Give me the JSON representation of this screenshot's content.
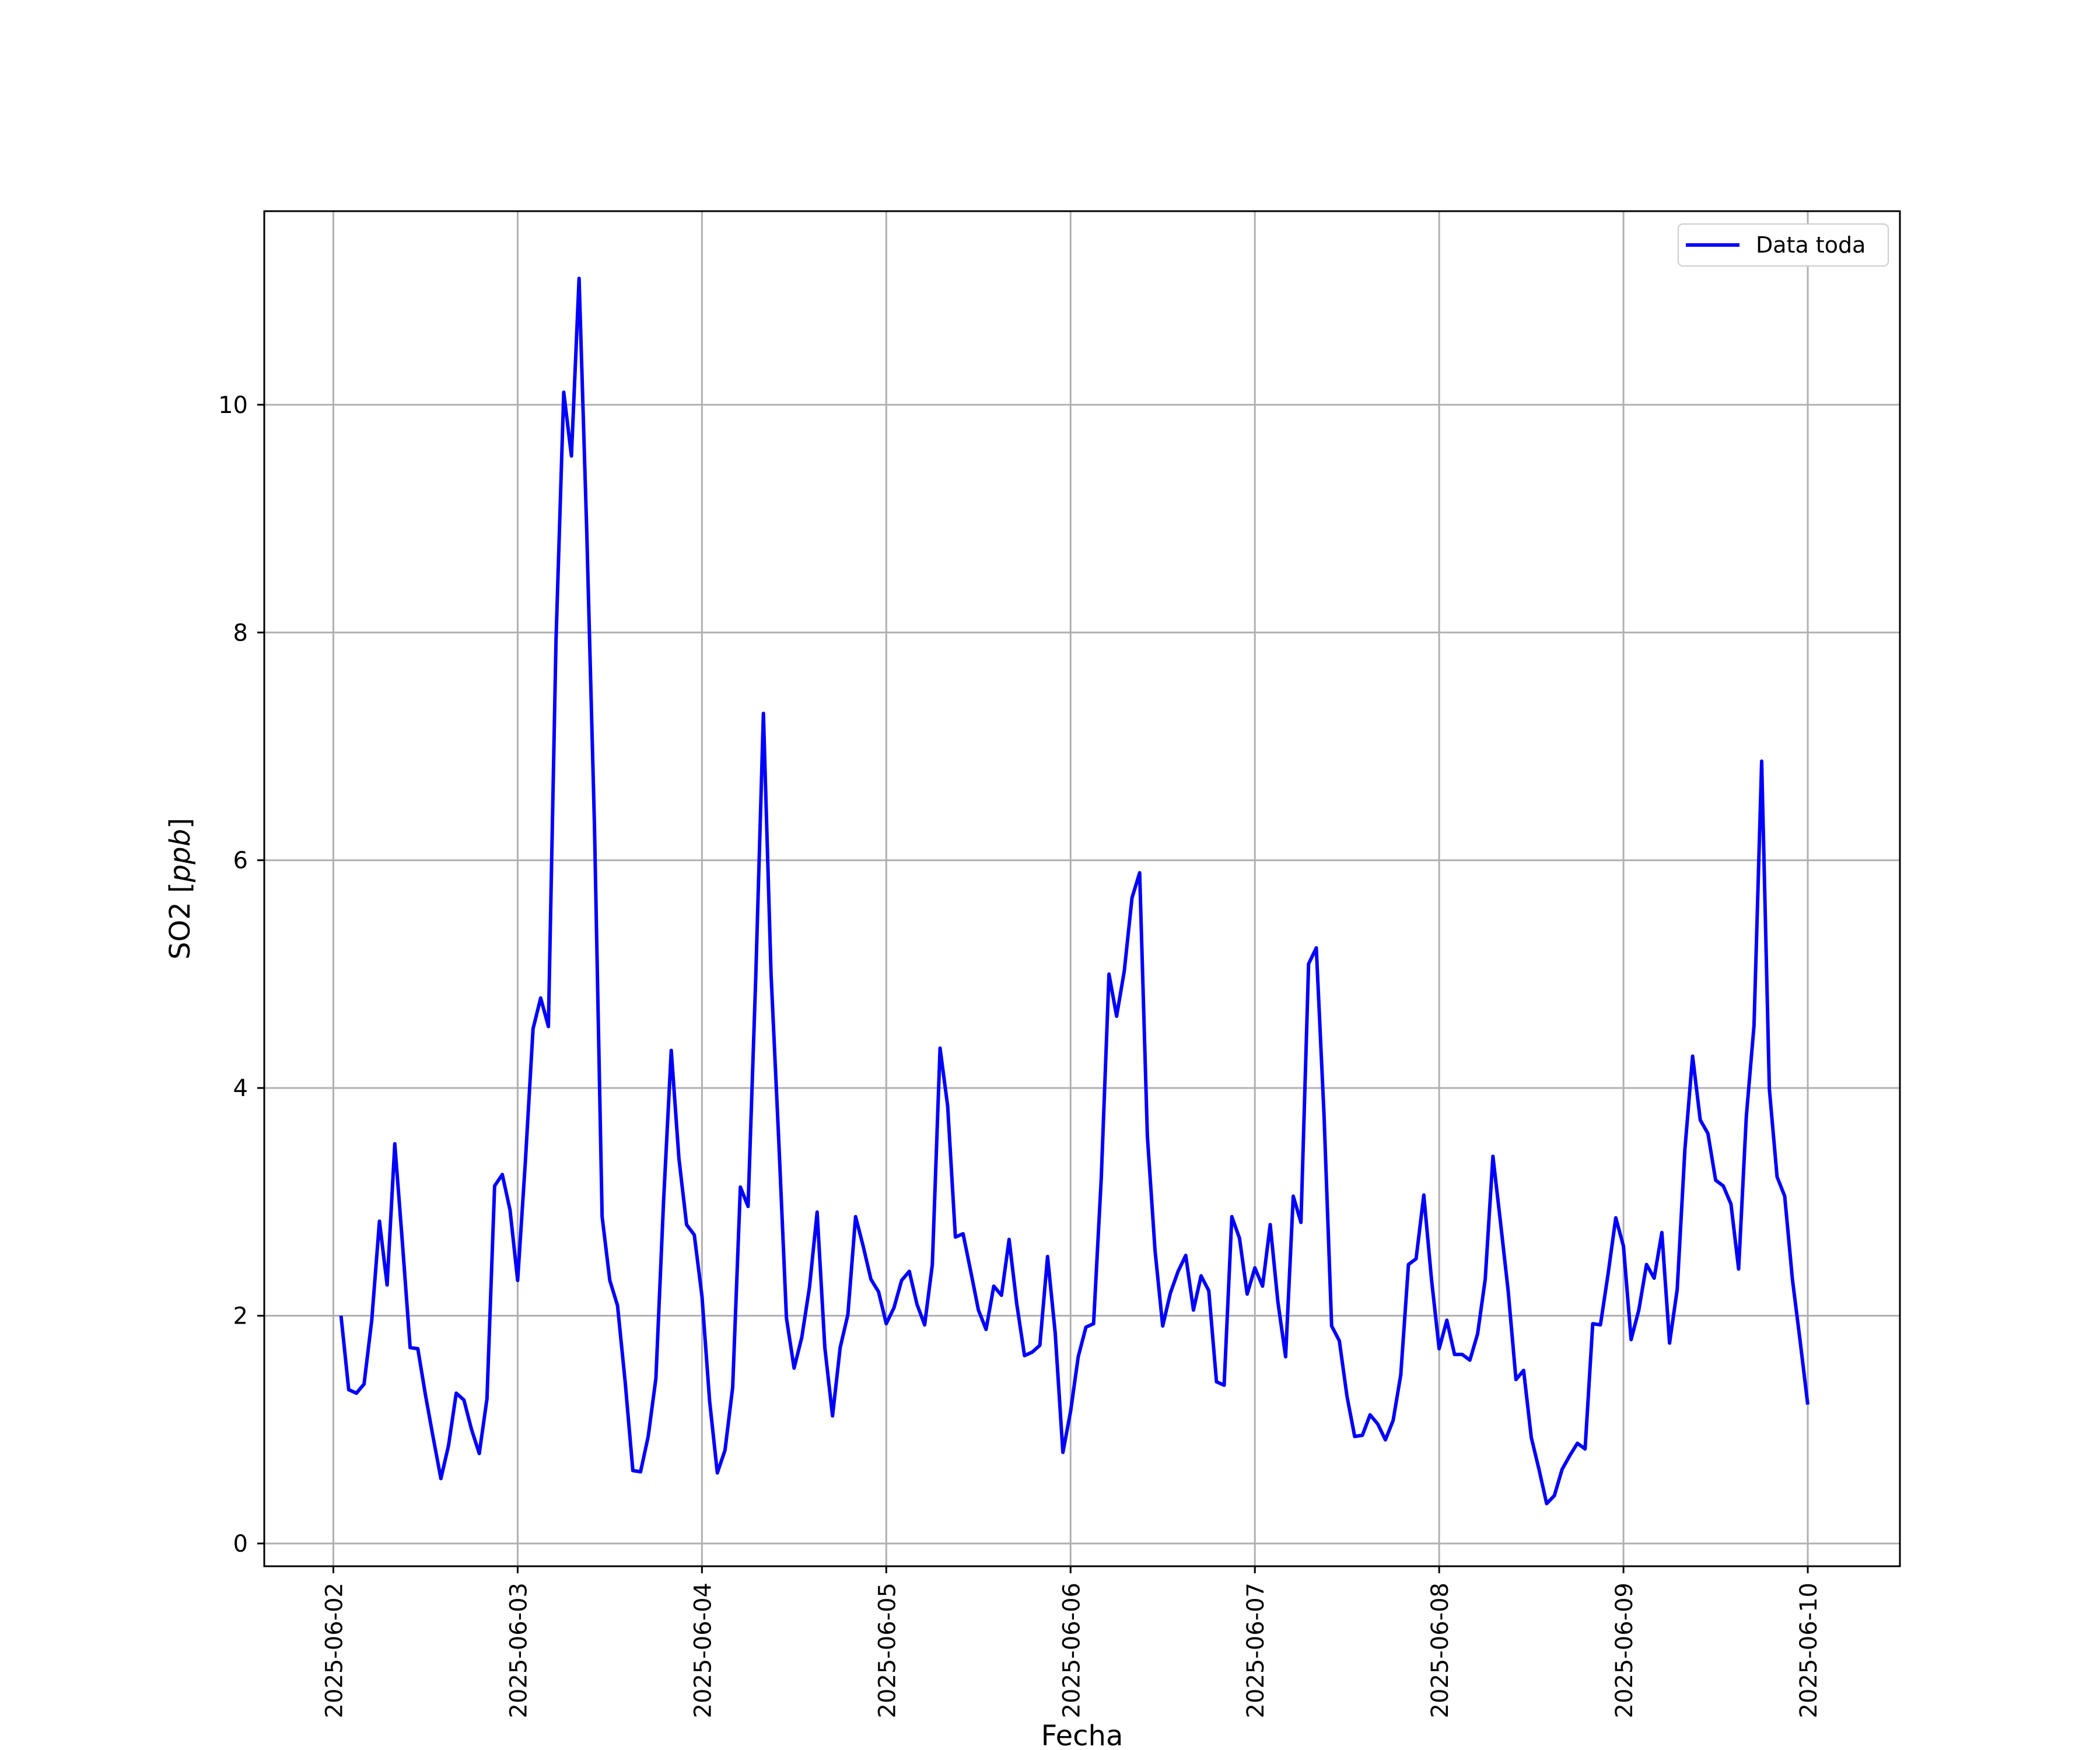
{
  "chart_data": {
    "type": "line",
    "title": "",
    "xlabel": "Fecha",
    "ylabel_main": "SO2 [",
    "ylabel_unit": "ppb",
    "ylabel_end": "]",
    "xlim": [
      "2025-06-01T15:00",
      "2025-06-10T12:00"
    ],
    "ylim": [
      -0.2,
      11.7
    ],
    "yticks": [
      0,
      2,
      4,
      6,
      8,
      10
    ],
    "xticks": [
      "2025-06-02",
      "2025-06-03",
      "2025-06-04",
      "2025-06-05",
      "2025-06-06",
      "2025-06-07",
      "2025-06-08",
      "2025-06-09",
      "2025-06-10"
    ],
    "grid": true,
    "legend_position": "top-right",
    "series": [
      {
        "name": "Data toda",
        "color": "#0000ff",
        "x_start": "2025-06-02T01:00",
        "x_step_hours": 1,
        "values": [
          2.0,
          1.35,
          1.32,
          1.4,
          1.96,
          2.83,
          2.27,
          3.51,
          2.63,
          1.72,
          1.71,
          1.3,
          0.93,
          0.57,
          0.86,
          1.32,
          1.26,
          1.0,
          0.79,
          1.27,
          3.14,
          3.24,
          2.93,
          2.31,
          3.35,
          4.52,
          4.79,
          4.54,
          7.94,
          10.11,
          9.55,
          11.11,
          8.88,
          6.3,
          2.87,
          2.31,
          2.09,
          1.42,
          0.64,
          0.63,
          0.94,
          1.45,
          3.0,
          4.33,
          3.38,
          2.8,
          2.71,
          2.17,
          1.25,
          0.62,
          0.82,
          1.37,
          3.13,
          2.96,
          4.96,
          7.29,
          5.0,
          3.54,
          1.98,
          1.54,
          1.81,
          2.25,
          2.91,
          1.72,
          1.12,
          1.72,
          2.01,
          2.87,
          2.61,
          2.32,
          2.21,
          1.93,
          2.07,
          2.31,
          2.39,
          2.1,
          1.92,
          2.45,
          4.35,
          3.84,
          2.69,
          2.72,
          2.39,
          2.05,
          1.88,
          2.26,
          2.18,
          2.67,
          2.1,
          1.65,
          1.68,
          1.74,
          2.52,
          1.85,
          0.8,
          1.16,
          1.64,
          1.9,
          1.93,
          3.21,
          5.0,
          4.63,
          5.03,
          5.67,
          5.89,
          3.58,
          2.57,
          1.91,
          2.2,
          2.39,
          2.53,
          2.05,
          2.35,
          2.22,
          1.42,
          1.39,
          2.87,
          2.68,
          2.19,
          2.42,
          2.26,
          2.8,
          2.12,
          1.64,
          3.05,
          2.82,
          5.09,
          5.23,
          3.77,
          1.91,
          1.78,
          1.29,
          0.94,
          0.95,
          1.13,
          1.05,
          0.91,
          1.08,
          1.48,
          2.45,
          2.5,
          3.06,
          2.32,
          1.71,
          1.96,
          1.66,
          1.66,
          1.61,
          1.84,
          2.32,
          3.4,
          2.81,
          2.21,
          1.44,
          1.52,
          0.93,
          0.65,
          0.35,
          0.42,
          0.65,
          0.77,
          0.88,
          0.83,
          1.93,
          1.92,
          2.37,
          2.86,
          2.61,
          1.79,
          2.05,
          2.45,
          2.33,
          2.73,
          1.76,
          2.23,
          3.46,
          4.28,
          3.72,
          3.6,
          3.19,
          3.14,
          2.98,
          2.41,
          3.75,
          4.55,
          6.87,
          3.99,
          3.22,
          3.05,
          2.32,
          1.78,
          1.22
        ]
      }
    ]
  }
}
